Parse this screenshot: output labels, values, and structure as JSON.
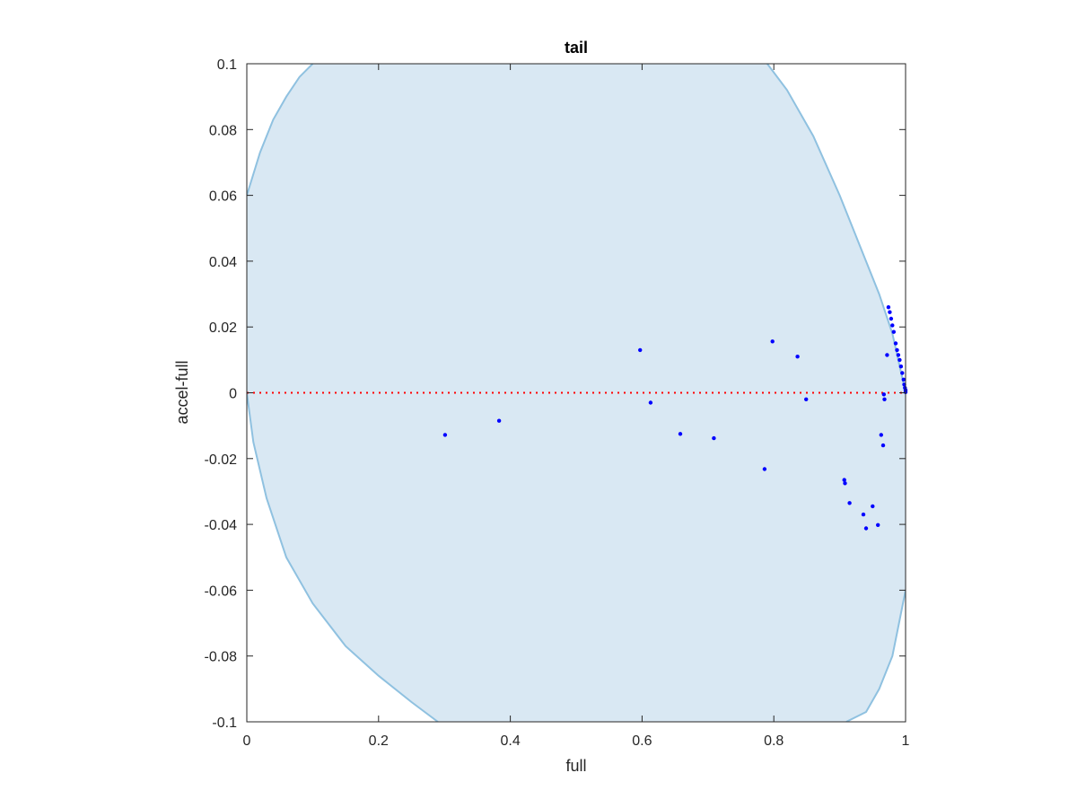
{
  "chart_data": {
    "type": "scatter",
    "title": "tail",
    "xlabel": "full",
    "ylabel": "accel-full",
    "xlim": [
      0,
      1
    ],
    "ylim": [
      -0.1,
      0.1
    ],
    "x_ticks": [
      0,
      0.2,
      0.4,
      0.6,
      0.8,
      1
    ],
    "x_tick_labels": [
      "0",
      "0.2",
      "0.4",
      "0.6",
      "0.8",
      "1"
    ],
    "y_ticks": [
      -0.1,
      -0.08,
      -0.06,
      -0.04,
      -0.02,
      0,
      0.02,
      0.04,
      0.06,
      0.08,
      0.1
    ],
    "y_tick_labels": [
      "-0.1",
      "-0.08",
      "-0.06",
      "-0.04",
      "-0.02",
      "0",
      "0.02",
      "0.04",
      "0.06",
      "0.08",
      "0.1"
    ],
    "grid": false,
    "legend": "none",
    "region": {
      "color": "#d9e8f3",
      "edge_color": "#8fc1e0",
      "boundary": [
        [
          0,
          0.06
        ],
        [
          0.02,
          0.073
        ],
        [
          0.04,
          0.083
        ],
        [
          0.06,
          0.09
        ],
        [
          0.08,
          0.096
        ],
        [
          0.1,
          0.1
        ],
        [
          0.79,
          0.1
        ],
        [
          0.82,
          0.092
        ],
        [
          0.86,
          0.078
        ],
        [
          0.9,
          0.06
        ],
        [
          0.93,
          0.045
        ],
        [
          0.96,
          0.03
        ],
        [
          0.98,
          0.018
        ],
        [
          1,
          0
        ],
        [
          1,
          -0.06
        ],
        [
          0.99,
          -0.07
        ],
        [
          0.98,
          -0.08
        ],
        [
          0.96,
          -0.09
        ],
        [
          0.94,
          -0.097
        ],
        [
          0.91,
          -0.1
        ],
        [
          0.29,
          -0.1
        ],
        [
          0.25,
          -0.094
        ],
        [
          0.2,
          -0.086
        ],
        [
          0.15,
          -0.077
        ],
        [
          0.1,
          -0.064
        ],
        [
          0.06,
          -0.05
        ],
        [
          0.03,
          -0.032
        ],
        [
          0.01,
          -0.015
        ],
        [
          0,
          0
        ]
      ]
    },
    "reference_line": {
      "y": 0,
      "color": "#ff0000",
      "style": "dotted"
    },
    "series": [
      {
        "color": "#0000ff",
        "points": [
          [
            0.301,
            -0.0128
          ],
          [
            0.383,
            -0.0085
          ],
          [
            0.597,
            0.013
          ],
          [
            0.613,
            -0.003
          ],
          [
            0.658,
            -0.0125
          ],
          [
            0.709,
            -0.0138
          ],
          [
            0.786,
            -0.0232
          ],
          [
            0.798,
            0.0156
          ],
          [
            0.836,
            0.011
          ],
          [
            0.849,
            -0.002
          ],
          [
            0.907,
            -0.0265
          ],
          [
            0.908,
            -0.0275
          ],
          [
            0.915,
            -0.0335
          ],
          [
            0.936,
            -0.037
          ],
          [
            0.94,
            -0.0412
          ],
          [
            0.95,
            -0.0345
          ],
          [
            0.958,
            -0.0402
          ],
          [
            0.963,
            -0.0128
          ],
          [
            0.966,
            -0.016
          ],
          [
            0.967,
            -0.0005
          ],
          [
            0.968,
            -0.002
          ],
          [
            0.972,
            0.0115
          ],
          [
            0.974,
            0.026
          ],
          [
            0.976,
            0.0245
          ],
          [
            0.978,
            0.0225
          ],
          [
            0.98,
            0.0205
          ],
          [
            0.982,
            0.0185
          ],
          [
            0.985,
            0.015
          ],
          [
            0.987,
            0.013
          ],
          [
            0.989,
            0.0115
          ],
          [
            0.991,
            0.01
          ],
          [
            0.993,
            0.008
          ],
          [
            0.995,
            0.006
          ],
          [
            0.997,
            0.004
          ],
          [
            0.998,
            0.0025
          ],
          [
            0.999,
            0.0015
          ],
          [
            1.0,
            0.0008
          ],
          [
            1.0,
            0.0002
          ]
        ]
      }
    ]
  }
}
